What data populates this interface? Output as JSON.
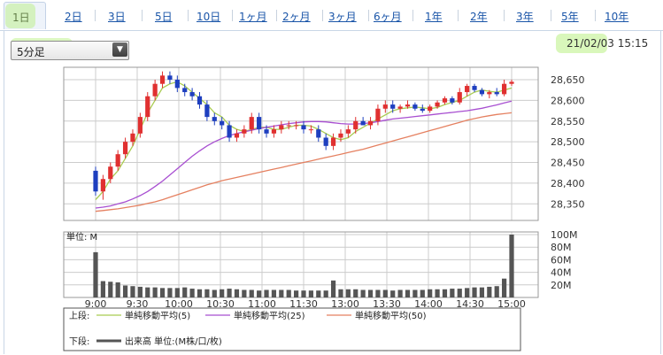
{
  "tabs": [
    {
      "label": "1日",
      "active": true
    },
    {
      "label": "2日"
    },
    {
      "label": "3日"
    },
    {
      "label": "5日"
    },
    {
      "label": "10日"
    },
    {
      "label": "1ヶ月"
    },
    {
      "label": "2ヶ月"
    },
    {
      "label": "3ヶ月"
    },
    {
      "label": "6ヶ月"
    },
    {
      "label": "1年"
    },
    {
      "label": "2年"
    },
    {
      "label": "3年"
    },
    {
      "label": "5年"
    },
    {
      "label": "10年"
    }
  ],
  "interval_select": {
    "value": "5分足"
  },
  "datetime": "21/02/03 15:15",
  "colors": {
    "up_candle": "#e03030",
    "down_candle": "#1e3fbf",
    "ma5": "#a9cc52",
    "ma25": "#a84fd1",
    "ma50": "#e58060",
    "volume": "#555555",
    "grid": "#cccccc"
  },
  "chart_data": [
    {
      "type": "candlestick",
      "x_ticks": [
        "9:00",
        "9:30",
        "10:00",
        "10:30",
        "11:00",
        "11:30",
        "13:00",
        "13:30",
        "14:00",
        "14:30",
        "15:00"
      ],
      "y_ticks": [
        "28,650",
        "28,600",
        "28,550",
        "28,500",
        "28,450",
        "28,400",
        "28,350"
      ],
      "ylim": [
        28310,
        28680
      ],
      "grid": true,
      "ohlc": [
        [
          28430,
          28440,
          28370,
          28380
        ],
        [
          28380,
          28420,
          28360,
          28410
        ],
        [
          28410,
          28450,
          28400,
          28440
        ],
        [
          28440,
          28480,
          28430,
          28470
        ],
        [
          28470,
          28510,
          28460,
          28500
        ],
        [
          28500,
          28530,
          28490,
          28520
        ],
        [
          28520,
          28570,
          28510,
          28560
        ],
        [
          28560,
          28620,
          28550,
          28610
        ],
        [
          28610,
          28650,
          28600,
          28640
        ],
        [
          28640,
          28670,
          28630,
          28660
        ],
        [
          28660,
          28670,
          28640,
          28650
        ],
        [
          28650,
          28660,
          28620,
          28630
        ],
        [
          28630,
          28640,
          28610,
          28620
        ],
        [
          28620,
          28630,
          28600,
          28610
        ],
        [
          28610,
          28620,
          28580,
          28590
        ],
        [
          28590,
          28600,
          28550,
          28560
        ],
        [
          28560,
          28570,
          28540,
          28550
        ],
        [
          28550,
          28560,
          28530,
          28540
        ],
        [
          28540,
          28550,
          28500,
          28510
        ],
        [
          28510,
          28530,
          28500,
          28520
        ],
        [
          28520,
          28540,
          28510,
          28530
        ],
        [
          28530,
          28570,
          28520,
          28560
        ],
        [
          28560,
          28570,
          28520,
          28530
        ],
        [
          28530,
          28540,
          28510,
          28520
        ],
        [
          28520,
          28540,
          28510,
          28530
        ],
        [
          28530,
          28550,
          28520,
          28540
        ],
        [
          28540,
          28550,
          28530,
          28540
        ],
        [
          28540,
          28550,
          28530,
          28540
        ],
        [
          28540,
          28550,
          28520,
          28530
        ],
        [
          28530,
          28540,
          28520,
          28530
        ],
        [
          28530,
          28540,
          28500,
          28510
        ],
        [
          28510,
          28520,
          28480,
          28490
        ],
        [
          28490,
          28520,
          28480,
          28510
        ],
        [
          28510,
          28530,
          28500,
          28520
        ],
        [
          28520,
          28540,
          28510,
          28530
        ],
        [
          28530,
          28560,
          28520,
          28550
        ],
        [
          28550,
          28560,
          28540,
          28540
        ],
        [
          28540,
          28560,
          28530,
          28550
        ],
        [
          28550,
          28590,
          28540,
          28580
        ],
        [
          28580,
          28600,
          28570,
          28590
        ],
        [
          28590,
          28600,
          28570,
          28580
        ],
        [
          28580,
          28590,
          28570,
          28585
        ],
        [
          28585,
          28600,
          28580,
          28590
        ],
        [
          28590,
          28595,
          28575,
          28580
        ],
        [
          28580,
          28590,
          28570,
          28575
        ],
        [
          28575,
          28590,
          28570,
          28585
        ],
        [
          28585,
          28600,
          28580,
          28595
        ],
        [
          28595,
          28610,
          28590,
          28605
        ],
        [
          28605,
          28610,
          28590,
          28595
        ],
        [
          28595,
          28630,
          28590,
          28620
        ],
        [
          28620,
          28640,
          28610,
          28635
        ],
        [
          28635,
          28640,
          28620,
          28625
        ],
        [
          28625,
          28630,
          28610,
          28615
        ],
        [
          28615,
          28625,
          28605,
          28620
        ],
        [
          28620,
          28630,
          28610,
          28615
        ],
        [
          28615,
          28650,
          28610,
          28640
        ],
        [
          28640,
          28650,
          28635,
          28645
        ]
      ],
      "series": [
        {
          "name": "単純移動平均(5)",
          "values": [
            28360,
            28380,
            28410,
            28430,
            28460,
            28490,
            28530,
            28570,
            28600,
            28630,
            28640,
            28645,
            28635,
            28620,
            28605,
            28590,
            28570,
            28560,
            28540,
            28530,
            28525,
            28530,
            28535,
            28535,
            28530,
            28530,
            28535,
            28540,
            28540,
            28538,
            28530,
            28520,
            28510,
            28505,
            28510,
            28525,
            28535,
            28545,
            28555,
            28565,
            28575,
            28580,
            28582,
            28584,
            28582,
            28580,
            28583,
            28590,
            28595,
            28600,
            28610,
            28620,
            28625,
            28622,
            28620,
            28625,
            28630
          ]
        },
        {
          "name": "単純移動平均(25)",
          "values": [
            28340,
            28342,
            28345,
            28350,
            28355,
            28362,
            28370,
            28380,
            28392,
            28405,
            28420,
            28435,
            28450,
            28465,
            28478,
            28490,
            28500,
            28508,
            28515,
            28520,
            28524,
            28528,
            28532,
            28535,
            28538,
            28541,
            28544,
            28546,
            28548,
            28549,
            28549,
            28548,
            28546,
            28544,
            28543,
            28543,
            28544,
            28546,
            28549,
            28552,
            28555,
            28557,
            28559,
            28561,
            28563,
            28565,
            28567,
            28569,
            28571,
            28573,
            28575,
            28578,
            28581,
            28585,
            28589,
            28594,
            28598
          ]
        },
        {
          "name": "単純移動平均(50)",
          "values": [
            28332,
            28334,
            28336,
            28338,
            28341,
            28344,
            28347,
            28351,
            28355,
            28360,
            28366,
            28372,
            28378,
            28384,
            28390,
            28396,
            28401,
            28406,
            28410,
            28414,
            28418,
            28422,
            28426,
            28430,
            28434,
            28438,
            28442,
            28446,
            28450,
            28454,
            28458,
            28462,
            28466,
            28470,
            28474,
            28478,
            28482,
            28487,
            28492,
            28497,
            28502,
            28507,
            28512,
            28517,
            28522,
            28527,
            28532,
            28537,
            28542,
            28547,
            28552,
            28556,
            28560,
            28563,
            28566,
            28568,
            28570
          ]
        }
      ]
    },
    {
      "type": "bar",
      "title": "単位: M",
      "y_ticks": [
        "100M",
        "80M",
        "60M",
        "40M",
        "20M"
      ],
      "ylim": [
        0,
        100
      ],
      "series": [
        {
          "name": "出来高",
          "values": [
            72,
            26,
            25,
            24,
            19,
            18,
            17,
            16,
            16,
            15,
            15,
            15,
            16,
            14,
            13,
            13,
            12,
            13,
            14,
            13,
            12,
            12,
            11,
            12,
            12,
            12,
            12,
            11,
            11,
            11,
            11,
            11,
            27,
            13,
            13,
            13,
            12,
            12,
            12,
            12,
            11,
            12,
            12,
            12,
            12,
            13,
            13,
            13,
            14,
            14,
            15,
            16,
            16,
            17,
            18,
            30,
            100
          ]
        }
      ]
    }
  ],
  "legend": {
    "upper_label": "上段:",
    "lower_label": "下段:",
    "ma5": "単純移動平均(5)",
    "ma25": "単純移動平均(25)",
    "ma50": "単純移動平均(50)",
    "volume": "出来高 単位:(M株/口/枚)"
  }
}
